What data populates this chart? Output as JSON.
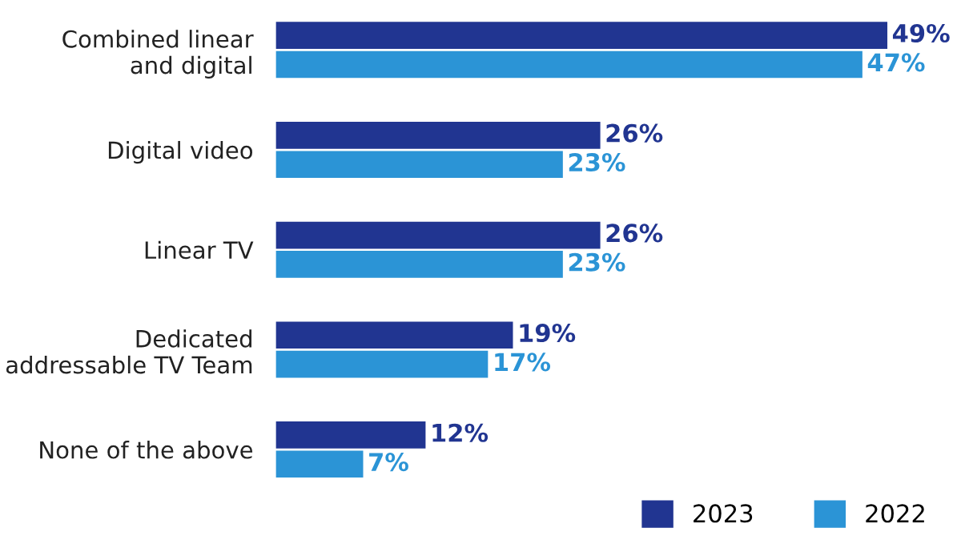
{
  "chart_data": {
    "type": "bar",
    "orientation": "horizontal",
    "categories": [
      "Combined linear\nand digital",
      "Digital video",
      "Linear TV",
      "Dedicated\naddressable TV Team",
      "None of the above"
    ],
    "series": [
      {
        "name": "2023",
        "color": "#213591",
        "values": [
          49,
          26,
          26,
          19,
          12
        ],
        "value_labels": [
          "49%",
          "26%",
          "26%",
          "19%",
          "12%"
        ]
      },
      {
        "name": "2022",
        "color": "#2b94d6",
        "values": [
          47,
          23,
          23,
          17,
          7
        ],
        "value_labels": [
          "47%",
          "23%",
          "23%",
          "17%",
          "7%"
        ]
      }
    ],
    "legend": "bottom right",
    "grid": false,
    "tick_labels": "y"
  }
}
